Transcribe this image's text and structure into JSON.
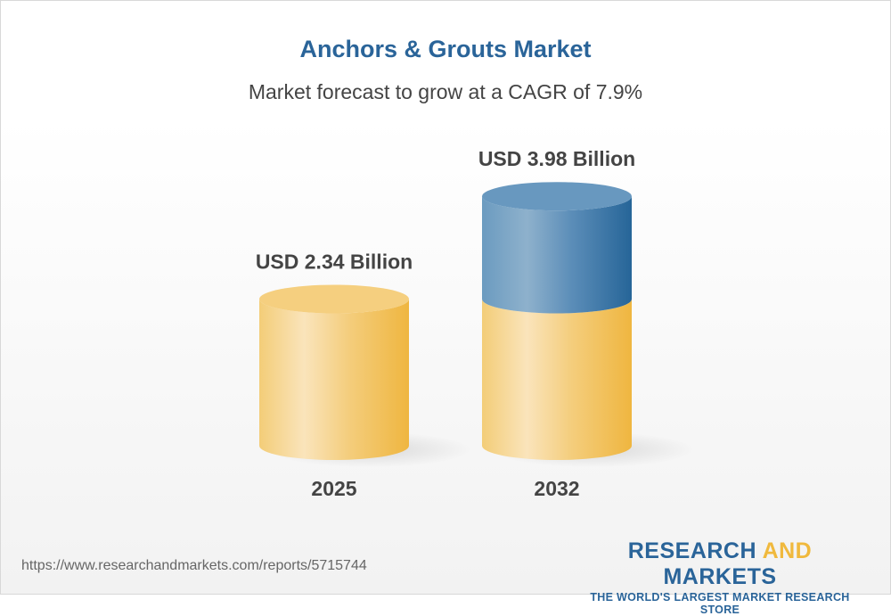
{
  "chart_data": {
    "type": "bar",
    "title": "Anchors & Grouts Market",
    "subtitle": "Market forecast to grow at a CAGR of 7.9%",
    "categories": [
      "2025",
      "2032"
    ],
    "values": [
      2.34,
      3.98
    ],
    "data_labels": [
      "USD 2.34 Billion",
      "USD 3.98 Billion"
    ],
    "unit": "USD Billion",
    "style": "3d-cylinder",
    "colors": {
      "base": "#f2c25a",
      "growth": "#2e6a9e"
    }
  },
  "footer": {
    "url": "https://www.researchandmarkets.com/reports/5715744",
    "logo_part1": "RESEARCH",
    "logo_part2": "AND",
    "logo_part3": "MARKETS",
    "tagline": "THE WORLD'S LARGEST MARKET RESEARCH STORE"
  }
}
